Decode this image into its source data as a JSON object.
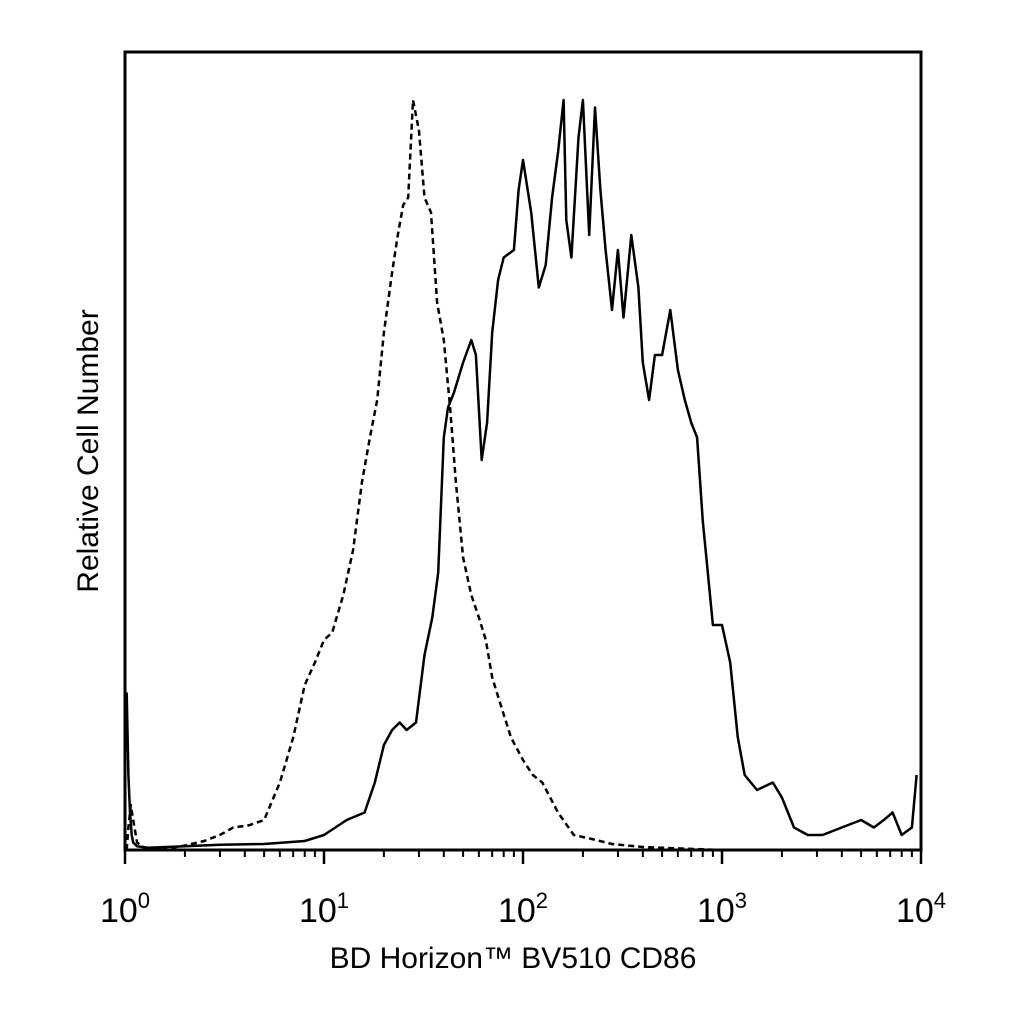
{
  "chart_data": {
    "type": "line",
    "title": "",
    "xlabel": "BD Horizon™ BV510 CD86",
    "ylabel": "Relative Cell Number",
    "xscale": "log",
    "xlim": [
      1,
      10000
    ],
    "ylim": [
      0,
      1
    ],
    "grid": false,
    "legend": "none",
    "x_ticks": [
      {
        "base": "10",
        "exp": "0"
      },
      {
        "base": "10",
        "exp": "1"
      },
      {
        "base": "10",
        "exp": "2"
      },
      {
        "base": "10",
        "exp": "3"
      },
      {
        "base": "10",
        "exp": "4"
      }
    ],
    "series": [
      {
        "style": "dashed",
        "color": "#000000",
        "x": [
          1.02,
          1.04,
          1.07,
          1.1,
          1.15,
          1.3,
          1.5,
          2,
          2.5,
          3,
          3.5,
          4.2,
          5,
          6,
          7,
          8,
          9,
          10,
          11,
          12.5,
          14,
          15.5,
          17,
          18.5,
          20,
          22,
          23.5,
          25,
          26.5,
          28,
          30,
          32,
          34.5,
          37,
          40,
          43,
          46,
          50,
          55,
          60,
          65,
          70,
          78,
          87,
          100,
          112,
          125,
          150,
          180,
          220,
          280,
          400,
          1000,
          10000
        ],
        "y": [
          0.0,
          0.03,
          0.06,
          0.04,
          0.01,
          0.0,
          0.0,
          0.006,
          0.012,
          0.02,
          0.03,
          0.033,
          0.04,
          0.09,
          0.15,
          0.22,
          0.25,
          0.28,
          0.29,
          0.34,
          0.4,
          0.49,
          0.55,
          0.6,
          0.69,
          0.77,
          0.82,
          0.86,
          0.87,
          1.0,
          0.96,
          0.87,
          0.85,
          0.73,
          0.68,
          0.59,
          0.49,
          0.39,
          0.34,
          0.31,
          0.28,
          0.23,
          0.19,
          0.15,
          0.12,
          0.1,
          0.09,
          0.05,
          0.02,
          0.015,
          0.008,
          0.004,
          0.0,
          0.0
        ]
      },
      {
        "style": "solid",
        "color": "#000000",
        "x": [
          1.02,
          1.04,
          1.06,
          1.08,
          1.1,
          1.15,
          1.3,
          2,
          3,
          5,
          8,
          10,
          13,
          16,
          18,
          20,
          22,
          24,
          26,
          29,
          32,
          35,
          37.5,
          40,
          42,
          45,
          50,
          55,
          58,
          62,
          66,
          70,
          75,
          80,
          90,
          95,
          100,
          110,
          120,
          130,
          140,
          150,
          160,
          165,
          175,
          190,
          200,
          215,
          230,
          245,
          260,
          280,
          300,
          320,
          350,
          380,
          400,
          430,
          460,
          500,
          550,
          600,
          650,
          700,
          750,
          800,
          900,
          1000,
          1100,
          1200,
          1300,
          1500,
          1800,
          2000,
          2300,
          2700,
          3200,
          4000,
          5000,
          5800,
          6500,
          7200,
          8000,
          9000,
          9500
        ],
        "y": [
          0.21,
          0.1,
          0.05,
          0.02,
          0.01,
          0.005,
          0.003,
          0.005,
          0.007,
          0.008,
          0.012,
          0.02,
          0.04,
          0.05,
          0.09,
          0.14,
          0.16,
          0.17,
          0.16,
          0.17,
          0.26,
          0.31,
          0.37,
          0.55,
          0.59,
          0.61,
          0.65,
          0.68,
          0.66,
          0.52,
          0.57,
          0.69,
          0.76,
          0.79,
          0.8,
          0.88,
          0.92,
          0.85,
          0.75,
          0.78,
          0.87,
          0.93,
          1.0,
          0.84,
          0.79,
          0.95,
          1.0,
          0.82,
          0.99,
          0.88,
          0.8,
          0.72,
          0.8,
          0.71,
          0.82,
          0.75,
          0.65,
          0.6,
          0.66,
          0.66,
          0.72,
          0.64,
          0.6,
          0.57,
          0.55,
          0.44,
          0.3,
          0.3,
          0.25,
          0.15,
          0.1,
          0.08,
          0.09,
          0.07,
          0.03,
          0.02,
          0.02,
          0.03,
          0.04,
          0.03,
          0.04,
          0.05,
          0.02,
          0.03,
          0.1
        ]
      }
    ]
  }
}
